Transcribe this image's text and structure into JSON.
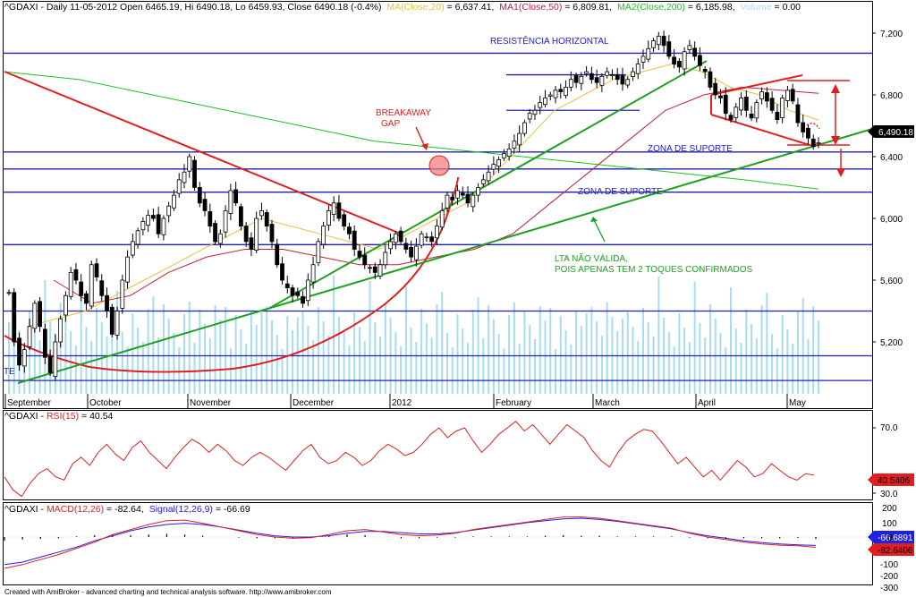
{
  "header": {
    "main": {
      "prefix": "^GDAXI - Daily 11-05-2012 Open 6465.19, Hi 6490.18, Lo 6459.93, Close 6490.18 (-0.4%)",
      "ma": "MA(Close,20)",
      "ma_val": " = 6,637.41,",
      "ma1": "MA1(Close,50)",
      "ma1_val": " = 6,809.81,",
      "ma2": "MA2(Close,200)",
      "ma2_val": " = 6,185.98,",
      "vol": "Volume",
      "vol_val": " = 0.00"
    },
    "rsi": {
      "prefix": "^GDAXI - ",
      "name": "RSI(15)",
      "val": " = 40.54"
    },
    "macd": {
      "prefix": "^GDAXI - ",
      "name": "MACD(12,26)",
      "val": " = -82.64,",
      "signal": "Signal(12,26,9)",
      "signal_val": " = -66.69"
    }
  },
  "annotations": {
    "resistance": "RESISTÊNCIA HORIZONTAL",
    "breakaway1": "BREAKAWAY",
    "breakaway2": "GAP",
    "support1": "ZONA DE SUPORTE",
    "support2": "ZONA DE SUPORTE",
    "lta1": "LTA NÃO VÁLIDA,",
    "lta2": "POIS APENAS TEM 2 TOQUES CONFIRMADOS",
    "te": "TE"
  },
  "footer": "Created with AmiBroker - advanced charting and technical analysis software. http://www.amibroker.com",
  "colors": {
    "candle": "#000000",
    "ma20": "#e8c040",
    "ma50": "#c02040",
    "ma200": "#20c020",
    "volume": "#a8dcf0",
    "trend_red": "#e02020",
    "trend_green": "#20a020",
    "hline": "#2020b0",
    "rsi": "#e02020",
    "macd": "#e02020",
    "signal": "#2020e0"
  },
  "chart_data": [
    {
      "type": "candlestick",
      "symbol": "^GDAXI",
      "x_tick_labels": [
        "September",
        "October",
        "November",
        "December",
        "2012",
        "February",
        "March",
        "April",
        "May"
      ],
      "y_tick_labels": [
        "7,200",
        "6,800",
        "6,400",
        "6,000",
        "5,600",
        "5,200"
      ],
      "ylim": [
        4900,
        7300
      ],
      "last_close_label": "6,490.18",
      "horizontal_levels": [
        7070,
        6430,
        6320,
        6170,
        5830,
        5400,
        5110,
        4950
      ],
      "resistance_box_level": 6930,
      "support_box_level": 6700,
      "close": [
        5520,
        5200,
        5050,
        5150,
        5300,
        5450,
        5300,
        5100,
        5000,
        5200,
        5350,
        5500,
        5650,
        5600,
        5500,
        5450,
        5700,
        5620,
        5500,
        5400,
        5250,
        5400,
        5600,
        5750,
        5850,
        5920,
        5980,
        6020,
        6000,
        5900,
        6000,
        6080,
        6150,
        6250,
        6300,
        6400,
        6200,
        6100,
        6050,
        5950,
        5850,
        5900,
        6050,
        6180,
        6100,
        5950,
        5850,
        5800,
        6000,
        6050,
        5950,
        5850,
        5700,
        5600,
        5550,
        5500,
        5500,
        5450,
        5600,
        5700,
        5850,
        5950,
        6050,
        6100,
        6000,
        5950,
        5900,
        5800,
        5750,
        5700,
        5680,
        5650,
        5700,
        5780,
        5850,
        5900,
        5850,
        5800,
        5750,
        5820,
        5900,
        5880,
        5850,
        5950,
        6050,
        6150,
        6120,
        6180,
        6150,
        6100,
        6150,
        6200,
        6250,
        6300,
        6350,
        6380,
        6420,
        6450,
        6500,
        6550,
        6620,
        6680,
        6700,
        6750,
        6780,
        6800,
        6830,
        6820,
        6850,
        6900,
        6880,
        6920,
        6950,
        6900,
        6880,
        6920,
        6950,
        6930,
        6900,
        6870,
        6900,
        6950,
        7000,
        7050,
        7100,
        7150,
        7180,
        7120,
        7050,
        7000,
        6980,
        7080,
        7120,
        7050,
        6990,
        6950,
        6850,
        6800,
        6780,
        6680,
        6640,
        6720,
        6780,
        6700,
        6650,
        6750,
        6820,
        6760,
        6700,
        6640,
        6780,
        6830,
        6760,
        6620,
        6560,
        6520,
        6465,
        6490
      ],
      "ma20_approx": [
        5300,
        5350,
        5400,
        5500,
        5600,
        5700,
        5800,
        5900,
        6000,
        5950,
        5900,
        5850,
        5800,
        5900,
        6000,
        6100,
        6300,
        6500,
        6700,
        6800,
        6900,
        6950,
        7000,
        6950,
        6850,
        6800,
        6700,
        6637
      ],
      "ma50_approx": [
        5600,
        5450,
        5500,
        5650,
        5750,
        5800,
        5800,
        5750,
        5700,
        5700,
        5750,
        5800,
        5900,
        6100,
        6300,
        6500,
        6700,
        6800,
        6850,
        6830,
        6810
      ],
      "ma200_approx": [
        6950,
        6900,
        6800,
        6700,
        6600,
        6500,
        6450,
        6400,
        6350,
        6300,
        6250,
        6190
      ]
    },
    {
      "type": "line",
      "name": "RSI(15)",
      "y_tick_labels": [
        "70.0",
        "30.0"
      ],
      "ylim": [
        25,
        80
      ],
      "last_value_label": "40.5406",
      "values": [
        40,
        32,
        28,
        36,
        42,
        45,
        40,
        38,
        48,
        52,
        47,
        55,
        60,
        54,
        50,
        58,
        62,
        55,
        50,
        45,
        52,
        58,
        63,
        60,
        55,
        60,
        56,
        50,
        47,
        52,
        55,
        52,
        48,
        44,
        50,
        56,
        60,
        52,
        48,
        50,
        55,
        52,
        47,
        50,
        56,
        60,
        57,
        53,
        55,
        60,
        66,
        70,
        64,
        68,
        70,
        62,
        55,
        60,
        66,
        70,
        74,
        68,
        72,
        66,
        60,
        66,
        72,
        68,
        64,
        56,
        50,
        46,
        55,
        62,
        66,
        69,
        68,
        62,
        55,
        48,
        52,
        46,
        40,
        44,
        38,
        44,
        50,
        46,
        40,
        42,
        48,
        44,
        40,
        38,
        42,
        41
      ]
    },
    {
      "type": "line",
      "name": "MACD(12,26) / Signal(12,26,9)",
      "y_tick_labels": [
        "200",
        "100",
        "0",
        "-100",
        "-200",
        "-300"
      ],
      "ylim": [
        -320,
        230
      ],
      "last_value_labels": [
        "-66.6891",
        "-82.6406"
      ],
      "macd": [
        -250,
        -220,
        -180,
        -140,
        -90,
        -40,
        20,
        60,
        100,
        130,
        135,
        110,
        80,
        50,
        20,
        0,
        -10,
        -5,
        20,
        50,
        60,
        40,
        20,
        10,
        15,
        30,
        60,
        80,
        100,
        120,
        140,
        160,
        160,
        150,
        130,
        110,
        90,
        70,
        30,
        0,
        -20,
        -40,
        -55,
        -65,
        -70,
        -82
      ],
      "signal": [
        -220,
        -200,
        -160,
        -120,
        -80,
        -30,
        10,
        50,
        80,
        100,
        110,
        100,
        80,
        55,
        30,
        10,
        0,
        0,
        10,
        30,
        45,
        45,
        35,
        25,
        25,
        35,
        55,
        75,
        95,
        115,
        130,
        145,
        150,
        140,
        125,
        105,
        85,
        65,
        35,
        10,
        -10,
        -30,
        -45,
        -55,
        -62,
        -67
      ],
      "histogram": [
        -30,
        -20,
        -15,
        -10,
        5,
        15,
        20,
        15,
        20,
        25,
        20,
        10,
        0,
        -5,
        -10,
        -10,
        -10,
        -5,
        10,
        20,
        15,
        0,
        -10,
        -10,
        -5,
        -5,
        5,
        5,
        5,
        5,
        10,
        15,
        10,
        10,
        5,
        5,
        5,
        5,
        -5,
        -10,
        -10,
        -10,
        -10,
        -10,
        -8,
        -15
      ]
    }
  ]
}
